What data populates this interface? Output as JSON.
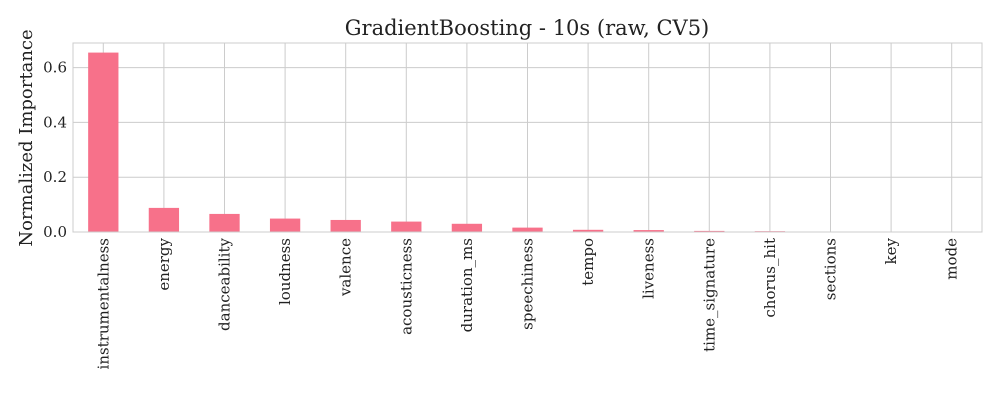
{
  "chart_data": {
    "type": "bar",
    "title": "GradientBoosting - 10s (raw, CV5)",
    "xlabel": "",
    "ylabel": "Normalized Importance",
    "categories": [
      "instrumentalness",
      "energy",
      "danceability",
      "loudness",
      "valence",
      "acousticness",
      "duration_ms",
      "speechiness",
      "tempo",
      "liveness",
      "time_signature",
      "chorus_hit",
      "sections",
      "key",
      "mode"
    ],
    "values": [
      0.655,
      0.088,
      0.066,
      0.049,
      0.044,
      0.038,
      0.03,
      0.016,
      0.008,
      0.007,
      0.004,
      0.003,
      0.0,
      0.0,
      0.0
    ],
    "ylim": [
      0,
      0.69
    ],
    "yticks": [
      0.0,
      0.2,
      0.4,
      0.6
    ],
    "ytick_labels": [
      "0.0",
      "0.2",
      "0.4",
      "0.6"
    ],
    "grid": true,
    "legend": "none",
    "colors": {
      "bar": "#f7718a",
      "grid": "#cccccc",
      "axis": "#cccccc",
      "text": "#222222"
    }
  }
}
